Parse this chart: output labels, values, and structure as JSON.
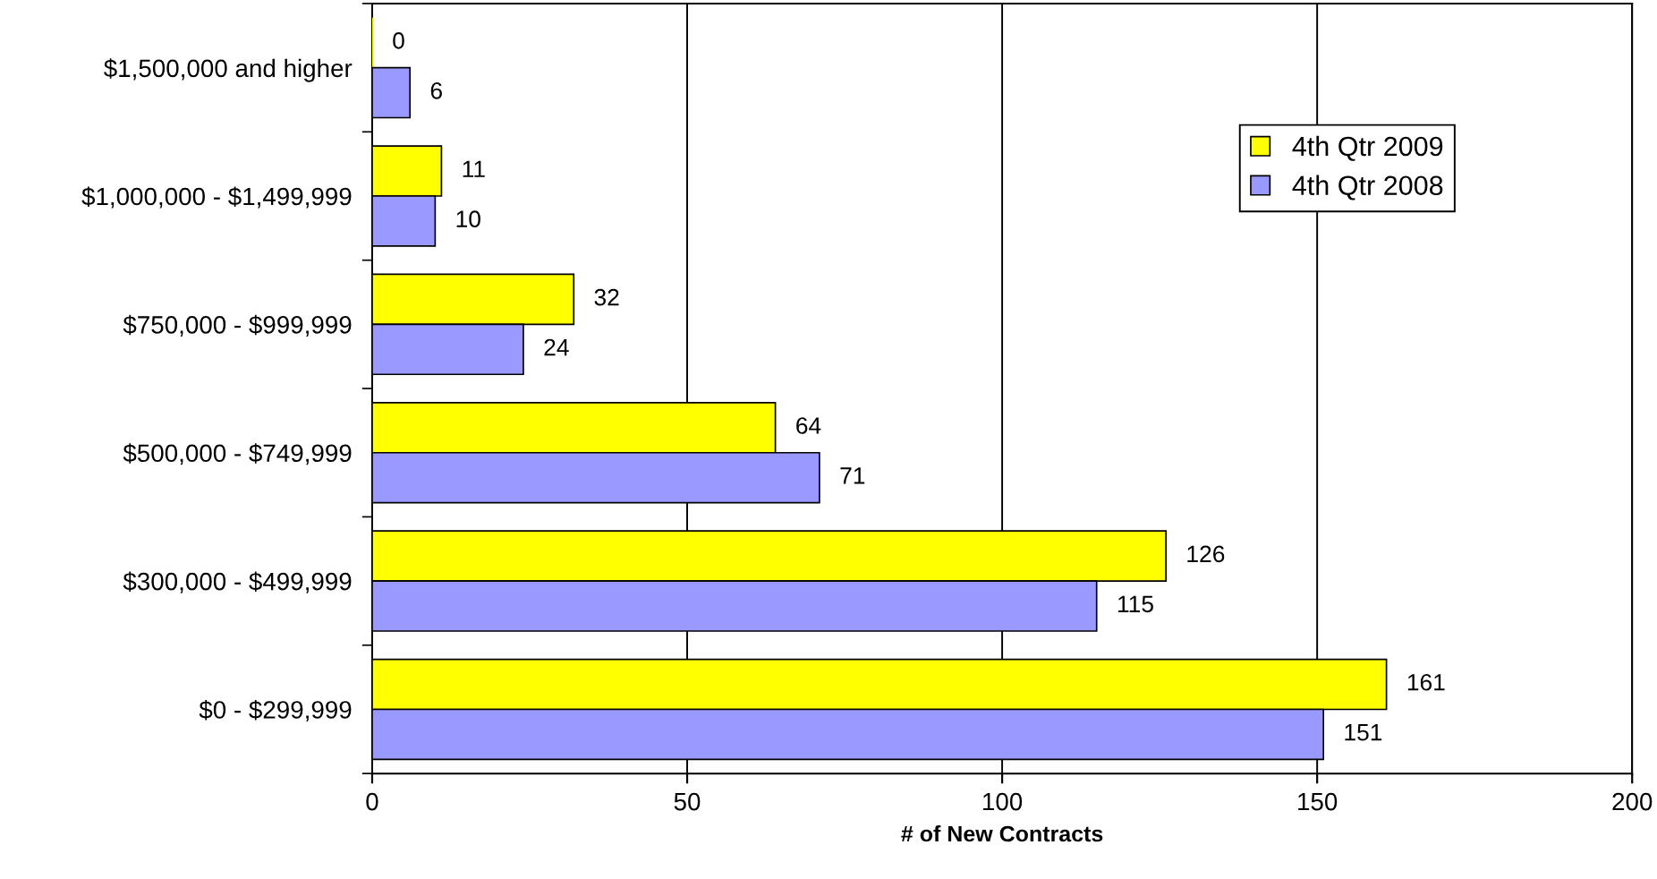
{
  "chart_data": {
    "type": "bar",
    "orientation": "horizontal",
    "xlabel": "# of New Contracts",
    "categories": [
      "$1,500,000 and higher",
      "$1,000,000 - $1,499,999",
      "$750,000 - $999,999",
      "$500,000 - $749,999",
      "$300,000 - $499,999",
      "$0 - $299,999"
    ],
    "series": [
      {
        "name": "4th Qtr 2009",
        "color": "#ffff00",
        "values": [
          0,
          11,
          32,
          64,
          126,
          161
        ]
      },
      {
        "name": "4th Qtr 2008",
        "color": "#9999ff",
        "values": [
          6,
          10,
          24,
          71,
          115,
          151
        ]
      }
    ],
    "xlim": [
      0,
      200
    ],
    "xticks": [
      0,
      50,
      100,
      150,
      200
    ],
    "grid": "x",
    "legend": "top right",
    "data_labels": true
  }
}
